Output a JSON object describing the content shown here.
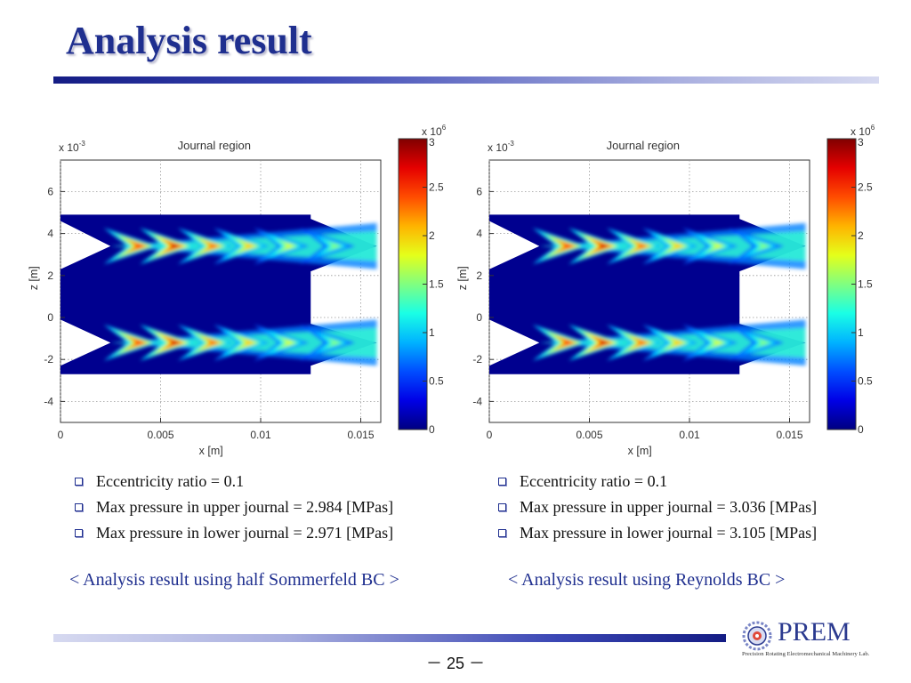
{
  "slide": {
    "title": "Analysis result",
    "page_number": "－ 25 －",
    "logo": {
      "text": "PREM",
      "subtitle": "Precision Rotating Electromechanical Machinery Lab."
    }
  },
  "colors": {
    "title": "#1f2f8f",
    "accent": "#141c84"
  },
  "left": {
    "bullets": [
      "Eccentricity ratio = 0.1",
      "Max pressure in upper journal = 2.984 [MPas]",
      "Max pressure in lower journal = 2.971 [MPas]"
    ],
    "caption": "< Analysis result using half Sommerfeld BC >"
  },
  "right": {
    "bullets": [
      "Eccentricity ratio = 0.1",
      "Max pressure in upper journal = 3.036 [MPas]",
      "Max pressure in lower journal = 3.105 [MPas]"
    ],
    "caption": "< Analysis result using Reynolds BC >"
  },
  "chart_data": [
    {
      "type": "heatmap",
      "title": "Journal region",
      "xlabel": "x [m]",
      "ylabel": "z [m]",
      "x_multiplier": "",
      "y_multiplier": "x 10-3",
      "xlim": [
        0,
        0.016
      ],
      "ylim": [
        -5,
        7.5
      ],
      "xticks": [
        "0",
        "0.005",
        "0.01",
        "0.015"
      ],
      "yticks": [
        "6",
        "4",
        "2",
        "0",
        "-2",
        "-4"
      ],
      "colorbar": {
        "multiplier": "x 106",
        "range": [
          0,
          3
        ],
        "ticks": [
          "3",
          "2.5",
          "2",
          "1.5",
          "1",
          "0.5",
          "0"
        ]
      },
      "grid": true,
      "max_upper_MPa": 2.984,
      "max_lower_MPa": 2.971
    },
    {
      "type": "heatmap",
      "title": "Journal region",
      "xlabel": "x [m]",
      "ylabel": "z [m]",
      "x_multiplier": "",
      "y_multiplier": "x 10-3",
      "xlim": [
        0,
        0.016
      ],
      "ylim": [
        -5,
        7.5
      ],
      "xticks": [
        "0",
        "0.005",
        "0.01",
        "0.015"
      ],
      "yticks": [
        "6",
        "4",
        "2",
        "0",
        "-2",
        "-4"
      ],
      "colorbar": {
        "multiplier": "x 106",
        "range": [
          0,
          3
        ],
        "ticks": [
          "3",
          "2.5",
          "2",
          "1.5",
          "1",
          "0.5",
          "0"
        ]
      },
      "grid": true,
      "max_upper_MPa": 3.036,
      "max_lower_MPa": 3.105
    }
  ]
}
